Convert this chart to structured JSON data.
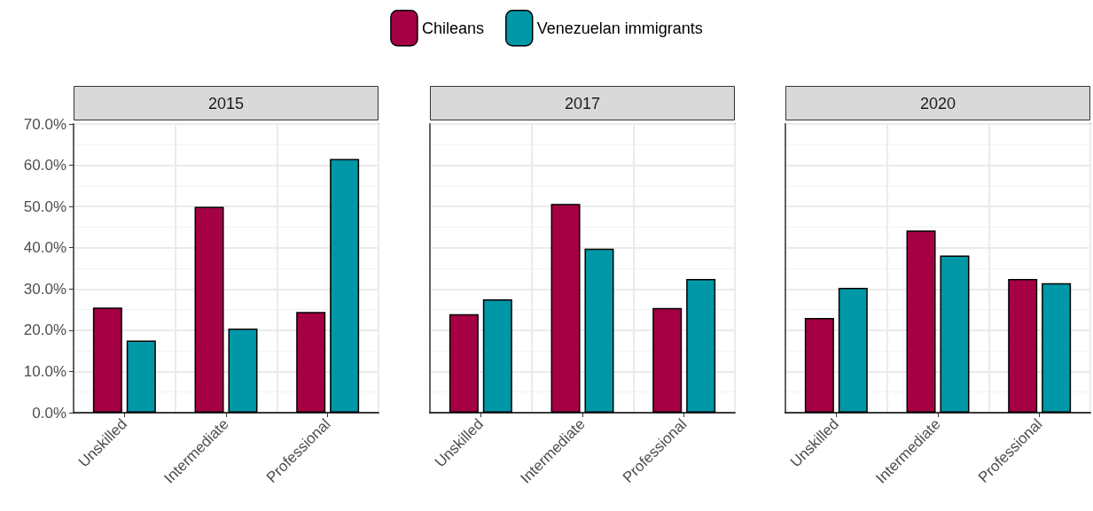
{
  "chart_data": [
    {
      "type": "bar",
      "title": "2015",
      "categories": [
        "Unskilled",
        "Intermediate",
        "Professional"
      ],
      "series": [
        {
          "name": "Chileans",
          "color": "#a50044",
          "values": [
            25.5,
            49.9,
            24.4
          ]
        },
        {
          "name": "Venezuelan immigrants",
          "color": "#0097a7",
          "values": [
            17.5,
            20.4,
            61.5
          ]
        }
      ],
      "ylim": [
        0,
        70
      ],
      "yticks": [
        {
          "value": 0,
          "label": "0.0%"
        },
        {
          "value": 10,
          "label": "10.0%"
        },
        {
          "value": 20,
          "label": "20.0%"
        },
        {
          "value": 30,
          "label": "30.0%"
        },
        {
          "value": 40,
          "label": "40.0%"
        },
        {
          "value": 50,
          "label": "50.0%"
        },
        {
          "value": 60,
          "label": "60.0%"
        },
        {
          "value": 70,
          "label": "70.0%"
        }
      ],
      "grid": true,
      "legend": "top"
    },
    {
      "type": "bar",
      "title": "2017",
      "categories": [
        "Unskilled",
        "Intermediate",
        "Professional"
      ],
      "series": [
        {
          "color": "#a50044",
          "values": [
            23.9,
            50.6,
            25.4
          ]
        },
        {
          "color": "#0097a7",
          "values": [
            27.5,
            39.8,
            32.4
          ]
        }
      ],
      "ylim": [
        0,
        70
      ],
      "grid": true,
      "tick_labels": "x"
    },
    {
      "type": "bar",
      "title": "2020",
      "categories": [
        "Unskilled",
        "Intermediate",
        "Professional"
      ],
      "series": [
        {
          "color": "#a50044",
          "values": [
            23.0,
            44.2,
            32.4
          ]
        },
        {
          "color": "#0097a7",
          "values": [
            30.3,
            38.1,
            31.4
          ]
        }
      ],
      "ylim": [
        0,
        70
      ],
      "grid": true,
      "tick_labels": "x"
    }
  ]
}
